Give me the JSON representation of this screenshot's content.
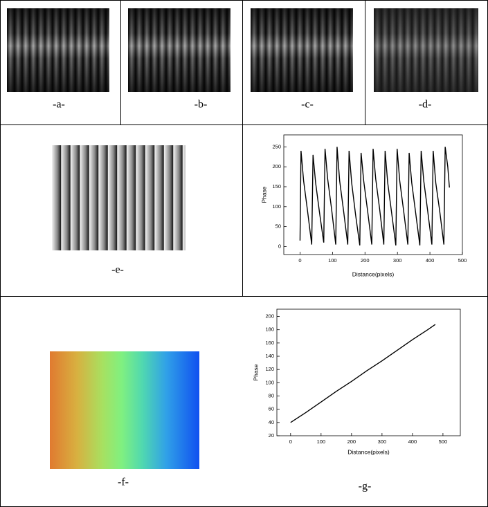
{
  "panels": [
    "-a-",
    "-b-",
    "-c-",
    "-d-",
    "-e-",
    "-f-",
    "-g-"
  ],
  "chart_data": [
    {
      "type": "line",
      "xlabel": "Distance(pixels)",
      "ylabel": "Phase",
      "color": "#000000",
      "x": [
        0,
        3,
        11,
        23,
        36,
        40,
        48,
        60,
        73,
        77,
        85,
        97,
        110,
        114,
        122,
        134,
        147,
        151,
        159,
        171,
        184,
        188,
        196,
        208,
        221,
        225,
        233,
        245,
        258,
        262,
        270,
        282,
        295,
        299,
        307,
        319,
        332,
        336,
        344,
        356,
        369,
        373,
        381,
        393,
        406,
        410,
        418,
        430,
        443,
        447,
        455,
        460
      ],
      "values": [
        15,
        240,
        165,
        90,
        5,
        230,
        160,
        85,
        10,
        245,
        170,
        95,
        5,
        250,
        165,
        90,
        5,
        240,
        160,
        80,
        3,
        235,
        165,
        90,
        5,
        245,
        170,
        95,
        5,
        240,
        160,
        85,
        3,
        245,
        165,
        90,
        5,
        235,
        160,
        85,
        3,
        240,
        165,
        90,
        5,
        240,
        160,
        90,
        5,
        250,
        200,
        148
      ],
      "xlim": [
        -50,
        500
      ],
      "ylim": [
        -20,
        280
      ],
      "xticks": [
        0,
        100,
        200,
        300,
        400,
        500
      ],
      "yticks": [
        0,
        50,
        100,
        150,
        200,
        250
      ]
    },
    {
      "type": "line",
      "xlabel": "Distance(pixels)",
      "ylabel": "Phase",
      "color": "#000000",
      "x": [
        0,
        50,
        100,
        150,
        200,
        250,
        300,
        350,
        400,
        450,
        475
      ],
      "values": [
        40,
        55,
        71,
        87,
        102,
        118,
        133,
        149,
        165,
        180,
        188
      ],
      "xlim": [
        -45,
        557
      ],
      "ylim": [
        20,
        211
      ],
      "xticks": [
        0,
        100,
        200,
        300,
        400,
        500
      ],
      "yticks": [
        20,
        40,
        60,
        80,
        100,
        120,
        140,
        160,
        180,
        200
      ]
    }
  ]
}
